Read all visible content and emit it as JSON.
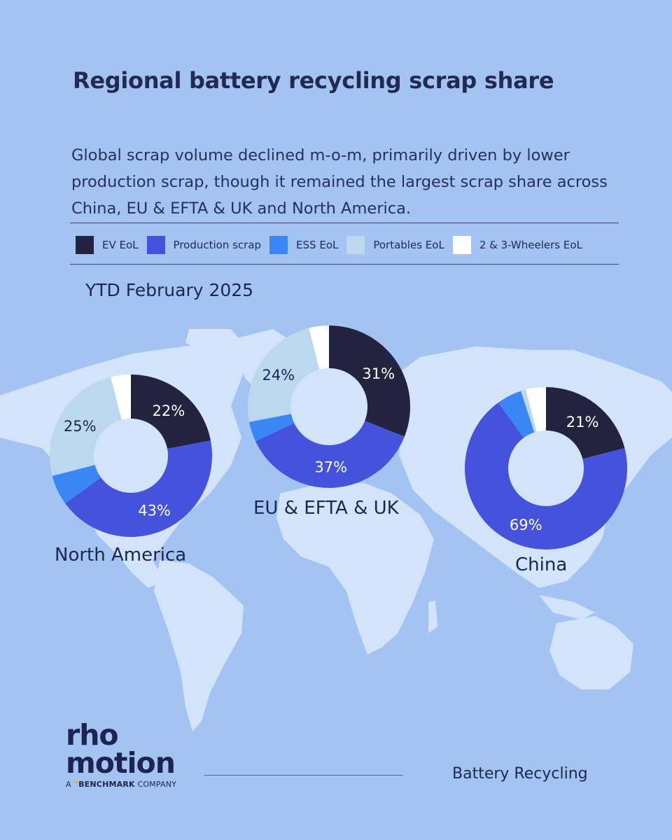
{
  "title": "Regional battery recycling scrap share",
  "subtitle": "Global scrap volume declined m-o-m, primarily driven by lower production scrap, though it remained the largest scrap share across China, EU & EFTA & UK and North America.",
  "period": "YTD February 2025",
  "colors": {
    "background": "#a3c3f3",
    "map_land": "#d2e3fa",
    "ev_eol": "#23233f",
    "production_scrap": "#4452dc",
    "ess_eol": "#3a86f5",
    "portables_eol": "#bcd8ee",
    "two_three_wheelers_eol": "#ffffff"
  },
  "legend": [
    {
      "label": "EV EoL",
      "color": "#23233f"
    },
    {
      "label": "Production scrap",
      "color": "#4452dc"
    },
    {
      "label": "ESS EoL",
      "color": "#3a86f5"
    },
    {
      "label": "Portables EoL",
      "color": "#bcd8ee"
    },
    {
      "label": "2 & 3-Wheelers EoL",
      "color": "#ffffff"
    }
  ],
  "chart_data": [
    {
      "type": "pie",
      "title": "North America",
      "categories": [
        "EV EoL",
        "Production scrap",
        "ESS EoL",
        "Portables EoL",
        "2 & 3-Wheelers EoL"
      ],
      "values": [
        22,
        43,
        6,
        25,
        4
      ],
      "labels": [
        "22%",
        "43%",
        "",
        "25%",
        ""
      ]
    },
    {
      "type": "pie",
      "title": "EU & EFTA & UK",
      "categories": [
        "EV EoL",
        "Production scrap",
        "ESS EoL",
        "Portables EoL",
        "2 & 3-Wheelers EoL"
      ],
      "values": [
        31,
        37,
        4,
        24,
        4
      ],
      "labels": [
        "31%",
        "37%",
        "",
        "24%",
        ""
      ]
    },
    {
      "type": "pie",
      "title": "China",
      "categories": [
        "EV EoL",
        "Production scrap",
        "ESS EoL",
        "Portables EoL",
        "2 & 3-Wheelers EoL"
      ],
      "values": [
        21,
        69,
        5,
        1,
        4
      ],
      "labels": [
        "21%",
        "69%",
        "",
        "",
        ""
      ]
    }
  ],
  "logo": {
    "line1": "rho",
    "line2": "motion",
    "tag_prefix": "A",
    "tag_brand": "BENCHMARK",
    "tag_suffix": "COMPANY"
  },
  "footer": {
    "label": "Battery Recycling"
  }
}
